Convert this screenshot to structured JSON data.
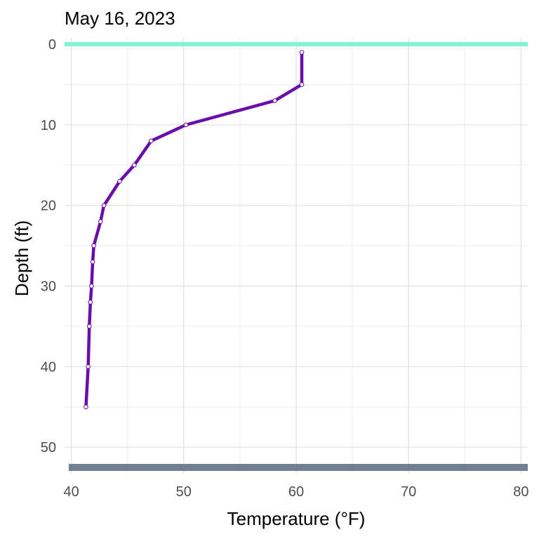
{
  "chart_data": {
    "type": "line",
    "title": "May 16, 2023",
    "xlabel": "Temperature (°F)",
    "ylabel": "Depth (ft)",
    "xlim": [
      40,
      80
    ],
    "ylim": [
      0,
      52.5
    ],
    "y_reversed": true,
    "x_ticks": [
      "40",
      "50",
      "60",
      "70",
      "80"
    ],
    "y_ticks": [
      "0",
      "10",
      "20",
      "30",
      "40",
      "50"
    ],
    "grid": true,
    "surface_line": {
      "depth": 0,
      "color": "#7ff5d3"
    },
    "bottom_band": {
      "depth": 52.5,
      "color": "#708090"
    },
    "series": [
      {
        "x": [
          60.5,
          60.5,
          58.1,
          50.2,
          47.1,
          45.6,
          44.3,
          42.9,
          42.6,
          42.0,
          41.9,
          41.8,
          41.7,
          41.6,
          41.5,
          41.3
        ],
        "y": [
          1,
          5,
          7,
          10,
          12,
          15,
          17,
          20,
          22,
          25,
          27,
          30,
          32,
          35,
          40,
          45
        ],
        "color": "#6a0dad"
      }
    ]
  }
}
